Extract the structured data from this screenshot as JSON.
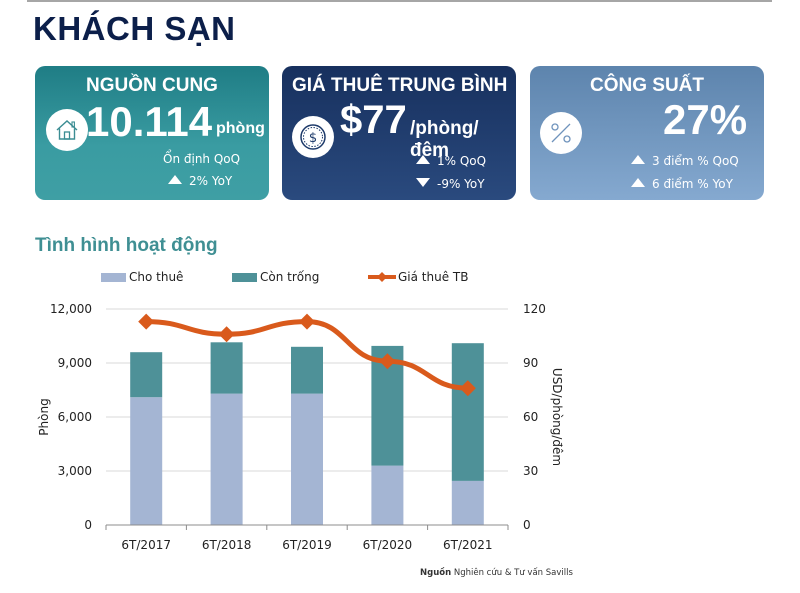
{
  "page_title": "KHÁCH SẠN",
  "cards": [
    {
      "title": "NGUỒN CUNG",
      "icon": "house-icon",
      "value": "10.114",
      "unit": "phòng",
      "lines": [
        {
          "trend": "none",
          "text": "Ổn định QoQ"
        },
        {
          "trend": "up",
          "text": "2%  YoY"
        }
      ]
    },
    {
      "title": "GIÁ THUÊ TRUNG BÌNH",
      "icon": "dollar-coin-icon",
      "value": "$77",
      "unit": "/phòng/đêm",
      "lines": [
        {
          "trend": "up",
          "text": "1% QoQ"
        },
        {
          "trend": "down",
          "text": "-9% YoY"
        }
      ]
    },
    {
      "title": "CÔNG SUẤT",
      "icon": "percent-icon",
      "value": "27%",
      "lines": [
        {
          "trend": "up",
          "text": "3 điểm % QoQ"
        },
        {
          "trend": "up",
          "text": "6 điểm % YoY"
        }
      ]
    }
  ],
  "section_title": "Tình hình hoạt động",
  "source_label": "Nguồn",
  "source_text": "Nghiên cứu & Tư vấn Savills",
  "colors": {
    "leased": "#a4b5d3",
    "vacant": "#4e9198",
    "rate": "#d95a1c"
  },
  "chart_data": {
    "type": "bar",
    "stacked": true,
    "title": "Tình hình hoạt động",
    "categories": [
      "6T/2017",
      "6T/2018",
      "6T/2019",
      "6T/2020",
      "6T/2021"
    ],
    "series": [
      {
        "name": "Cho thuê",
        "type": "bar",
        "axis": "left",
        "values": [
          7100,
          7300,
          7300,
          3300,
          2450
        ]
      },
      {
        "name": "Còn trống",
        "type": "bar",
        "axis": "left",
        "values": [
          2500,
          2850,
          2600,
          6650,
          7650
        ]
      },
      {
        "name": "Giá thuê TB",
        "type": "line",
        "axis": "right",
        "values": [
          113,
          106,
          113,
          91,
          76
        ]
      }
    ],
    "ylabel": "Phòng",
    "ylabel_right": "USD/phòng/đêm",
    "ylim": [
      0,
      12000
    ],
    "ylim_right": [
      0,
      120
    ],
    "yticks": [
      "0",
      "3,000",
      "6,000",
      "9,000",
      "12,000"
    ],
    "yticks_values": [
      0,
      3000,
      6000,
      9000,
      12000
    ],
    "yticks_right": [
      "0",
      "30",
      "60",
      "90",
      "120"
    ],
    "yticks_right_values": [
      0,
      30,
      60,
      90,
      120
    ],
    "grid": true,
    "legend": "top"
  }
}
